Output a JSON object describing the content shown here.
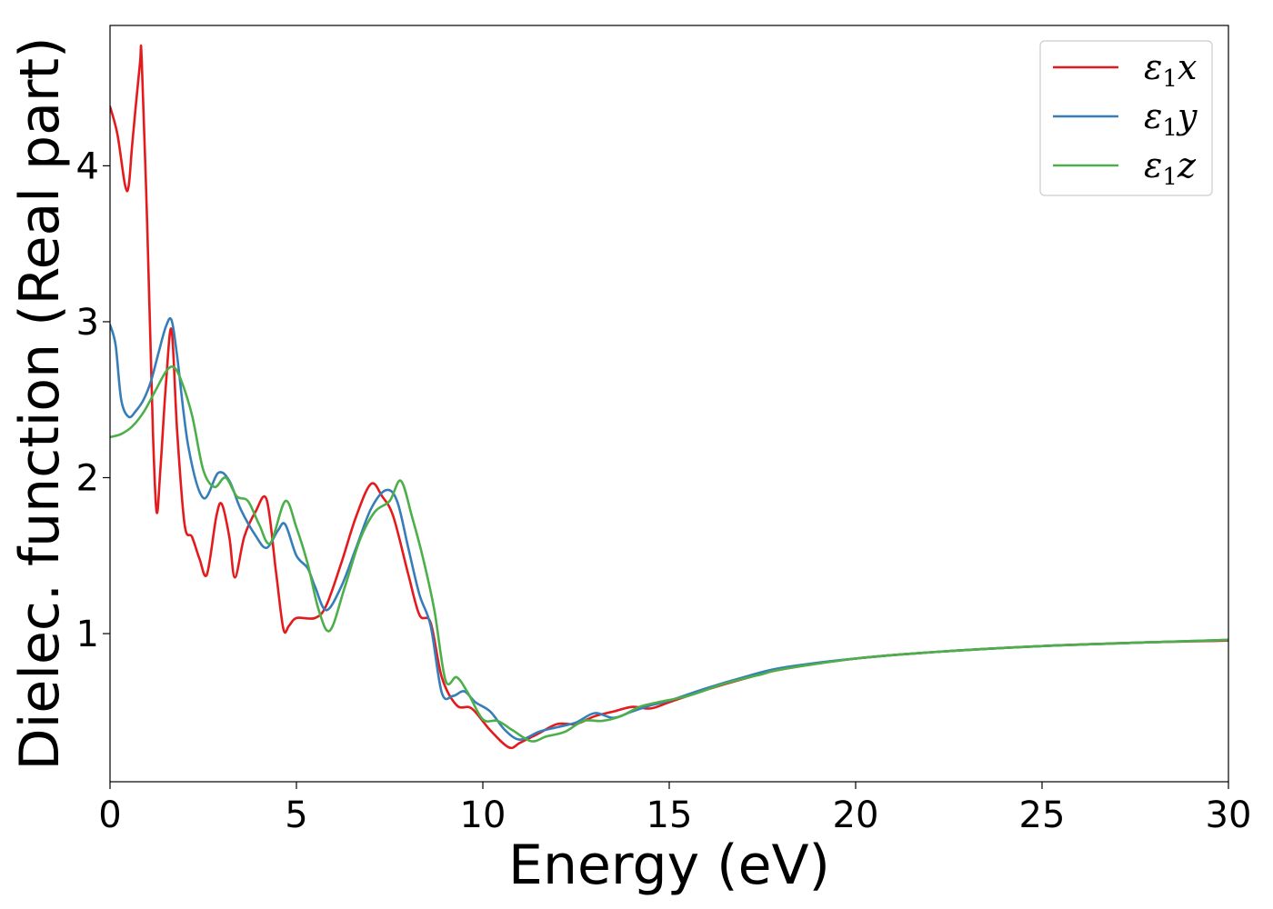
{
  "chart_data": {
    "type": "line",
    "title": "",
    "xlabel": "Energy (eV)",
    "ylabel": "Dielec. function (Real part)",
    "xlim": [
      0,
      30
    ],
    "ylim": [
      0.05,
      4.9
    ],
    "xticks": [
      0,
      5,
      10,
      15,
      20,
      25,
      30
    ],
    "yticks": [
      1,
      2,
      3,
      4
    ],
    "grid": false,
    "legend_position": "top-right",
    "colors": {
      "x": "#e41a1c",
      "y": "#377eb8",
      "z": "#4daf4a"
    },
    "series": [
      {
        "name": "ε1x",
        "legend_symbol": "ε",
        "legend_sub": "1",
        "legend_var": "x",
        "color": "#e41a1c",
        "x": [
          0,
          0.2,
          0.4,
          0.5,
          0.6,
          0.8,
          0.85,
          1.0,
          1.15,
          1.25,
          1.35,
          1.5,
          1.65,
          1.8,
          2.0,
          2.2,
          2.4,
          2.6,
          2.85,
          3.0,
          3.2,
          3.35,
          3.6,
          3.9,
          4.2,
          4.45,
          4.65,
          4.8,
          5.0,
          5.5,
          5.8,
          6.2,
          6.6,
          7.0,
          7.3,
          7.6,
          8.0,
          8.3,
          8.6,
          8.9,
          9.3,
          9.7,
          10.2,
          10.7,
          11.0,
          11.5,
          12.0,
          12.5,
          13.0,
          13.5,
          14.0,
          14.5,
          15.0,
          16.0,
          17.0,
          18.0,
          20.0,
          22.0,
          25.0,
          28.0,
          30.0
        ],
        "y": [
          4.38,
          4.2,
          3.88,
          3.87,
          4.15,
          4.65,
          4.68,
          3.6,
          2.3,
          1.78,
          2.05,
          2.6,
          2.95,
          2.3,
          1.7,
          1.62,
          1.48,
          1.38,
          1.75,
          1.83,
          1.62,
          1.36,
          1.62,
          1.78,
          1.86,
          1.4,
          1.03,
          1.05,
          1.1,
          1.1,
          1.18,
          1.45,
          1.75,
          1.96,
          1.88,
          1.75,
          1.38,
          1.12,
          1.07,
          0.72,
          0.54,
          0.52,
          0.38,
          0.27,
          0.3,
          0.36,
          0.42,
          0.42,
          0.47,
          0.5,
          0.53,
          0.52,
          0.56,
          0.64,
          0.71,
          0.77,
          0.84,
          0.88,
          0.92,
          0.945,
          0.955
        ]
      },
      {
        "name": "ε1y",
        "legend_symbol": "ε",
        "legend_sub": "1",
        "legend_var": "y",
        "color": "#377eb8",
        "x": [
          0,
          0.15,
          0.3,
          0.5,
          0.7,
          0.9,
          1.1,
          1.3,
          1.5,
          1.65,
          1.8,
          2.1,
          2.5,
          2.9,
          3.2,
          3.5,
          3.9,
          4.2,
          4.5,
          4.7,
          5.0,
          5.3,
          5.5,
          5.8,
          6.2,
          6.6,
          7.0,
          7.4,
          7.7,
          8.0,
          8.3,
          8.6,
          8.9,
          9.2,
          9.5,
          9.8,
          10.2,
          10.6,
          11.0,
          11.5,
          12.0,
          12.5,
          13.0,
          13.5,
          14.0,
          14.5,
          15.0,
          16.0,
          17.0,
          18.0,
          20.0,
          22.0,
          25.0,
          28.0,
          30.0
        ],
        "y": [
          2.98,
          2.85,
          2.5,
          2.39,
          2.43,
          2.5,
          2.62,
          2.8,
          2.97,
          3.01,
          2.78,
          2.2,
          1.87,
          2.03,
          1.98,
          1.8,
          1.63,
          1.55,
          1.66,
          1.7,
          1.5,
          1.42,
          1.3,
          1.15,
          1.3,
          1.55,
          1.8,
          1.92,
          1.85,
          1.55,
          1.25,
          1.05,
          0.62,
          0.6,
          0.63,
          0.56,
          0.5,
          0.38,
          0.32,
          0.37,
          0.4,
          0.43,
          0.49,
          0.46,
          0.5,
          0.54,
          0.57,
          0.65,
          0.72,
          0.78,
          0.84,
          0.88,
          0.92,
          0.945,
          0.96
        ]
      },
      {
        "name": "ε1z",
        "legend_symbol": "ε",
        "legend_sub": "1",
        "legend_var": "z",
        "color": "#4daf4a",
        "x": [
          0,
          0.3,
          0.6,
          0.9,
          1.2,
          1.5,
          1.7,
          1.9,
          2.2,
          2.5,
          2.8,
          3.1,
          3.4,
          3.7,
          4.0,
          4.3,
          4.7,
          5.0,
          5.3,
          5.6,
          5.9,
          6.3,
          6.7,
          7.1,
          7.5,
          7.8,
          8.1,
          8.4,
          8.7,
          9.0,
          9.3,
          9.6,
          10.0,
          10.4,
          10.8,
          11.3,
          11.7,
          12.2,
          12.7,
          13.2,
          13.7,
          14.2,
          14.7,
          15.5,
          16.5,
          17.5,
          18.0,
          20.0,
          22.0,
          25.0,
          28.0,
          30.0
        ],
        "y": [
          2.26,
          2.28,
          2.33,
          2.42,
          2.55,
          2.68,
          2.71,
          2.63,
          2.4,
          2.05,
          1.94,
          2.0,
          1.88,
          1.85,
          1.7,
          1.58,
          1.85,
          1.68,
          1.45,
          1.15,
          1.02,
          1.3,
          1.6,
          1.78,
          1.85,
          1.98,
          1.75,
          1.48,
          1.15,
          0.7,
          0.72,
          0.62,
          0.45,
          0.44,
          0.38,
          0.31,
          0.34,
          0.37,
          0.44,
          0.44,
          0.47,
          0.53,
          0.56,
          0.6,
          0.68,
          0.74,
          0.77,
          0.84,
          0.88,
          0.92,
          0.945,
          0.96
        ]
      }
    ]
  }
}
